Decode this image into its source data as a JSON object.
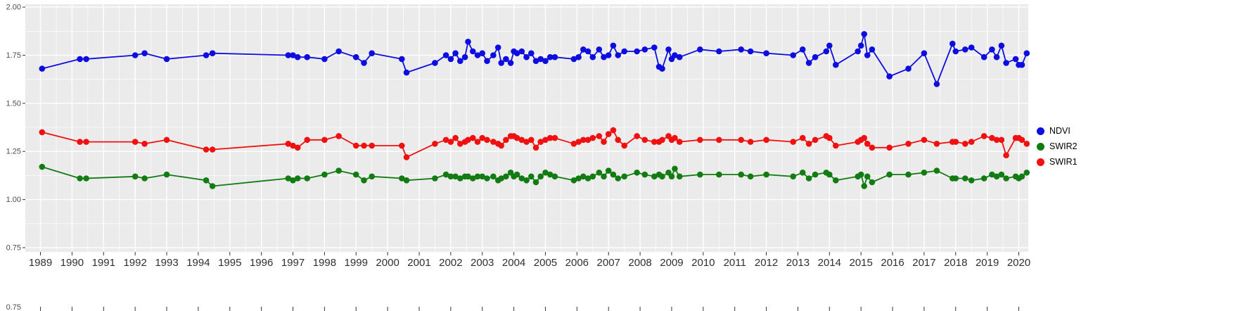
{
  "chart_data": {
    "type": "line",
    "title": "",
    "xlabel": "",
    "ylabel": "",
    "legend_position": "right",
    "grid": "major-and-minor",
    "xlim": [
      1988.52,
      2020.3
    ],
    "ylim": [
      0.728,
      2.015
    ],
    "x_ticks": [
      1989,
      1990,
      1991,
      1992,
      1993,
      1994,
      1995,
      1996,
      1997,
      1998,
      1999,
      2000,
      2001,
      2002,
      2003,
      2004,
      2005,
      2006,
      2007,
      2008,
      2009,
      2010,
      2011,
      2012,
      2013,
      2014,
      2015,
      2016,
      2017,
      2018,
      2019,
      2020
    ],
    "y_ticks": [
      0.75,
      1.0,
      1.25,
      1.5,
      1.75,
      2.0
    ],
    "y_tick_labels": [
      "0.75",
      "1.00",
      "1.25",
      "1.50",
      "1.75",
      "2.00"
    ],
    "bottom_axis_extra_label": "0.75",
    "colors": {
      "panel_bg": "#EBEBEB",
      "grid": "#FFFFFF",
      "tick": "#333333",
      "axis_text": "#4D4D4D",
      "x_label_text": "#303030"
    },
    "x": [
      1989.05,
      1990.25,
      1990.45,
      1992.0,
      1992.3,
      1993.0,
      1994.25,
      1994.45,
      1996.85,
      1997.0,
      1997.15,
      1997.45,
      1998.0,
      1998.45,
      1999.0,
      1999.25,
      1999.5,
      2000.45,
      2000.6,
      2001.5,
      2001.85,
      2002.0,
      2002.15,
      2002.3,
      2002.45,
      2002.55,
      2002.7,
      2002.85,
      2003.0,
      2003.15,
      2003.35,
      2003.5,
      2003.6,
      2003.75,
      2003.9,
      2004.0,
      2004.1,
      2004.25,
      2004.4,
      2004.55,
      2004.7,
      2004.85,
      2005.0,
      2005.15,
      2005.3,
      2005.9,
      2006.05,
      2006.2,
      2006.35,
      2006.5,
      2006.7,
      2006.85,
      2007.0,
      2007.15,
      2007.3,
      2007.5,
      2007.9,
      2008.15,
      2008.45,
      2008.6,
      2008.7,
      2008.9,
      2009.0,
      2009.1,
      2009.25,
      2009.9,
      2010.5,
      2011.2,
      2011.5,
      2012.0,
      2012.85,
      2013.15,
      2013.35,
      2013.55,
      2013.9,
      2014.0,
      2014.2,
      2014.9,
      2015.0,
      2015.1,
      2015.2,
      2015.35,
      2015.9,
      2016.5,
      2017.0,
      2017.4,
      2017.9,
      2018.0,
      2018.3,
      2018.5,
      2018.9,
      2019.15,
      2019.3,
      2019.45,
      2019.6,
      2019.9,
      2020.0,
      2020.1,
      2020.25
    ],
    "series": [
      {
        "name": "NDVI",
        "color": "#0D0DE0",
        "values": [
          1.68,
          1.73,
          1.73,
          1.75,
          1.76,
          1.73,
          1.75,
          1.76,
          1.75,
          1.75,
          1.74,
          1.74,
          1.73,
          1.77,
          1.74,
          1.71,
          1.76,
          1.73,
          1.66,
          1.71,
          1.75,
          1.73,
          1.76,
          1.72,
          1.74,
          1.82,
          1.77,
          1.75,
          1.76,
          1.72,
          1.75,
          1.79,
          1.71,
          1.73,
          1.71,
          1.77,
          1.76,
          1.77,
          1.74,
          1.76,
          1.72,
          1.73,
          1.72,
          1.74,
          1.74,
          1.73,
          1.74,
          1.78,
          1.77,
          1.74,
          1.78,
          1.74,
          1.75,
          1.8,
          1.75,
          1.77,
          1.77,
          1.78,
          1.79,
          1.69,
          1.68,
          1.78,
          1.73,
          1.75,
          1.74,
          1.78,
          1.77,
          1.78,
          1.77,
          1.76,
          1.75,
          1.78,
          1.71,
          1.74,
          1.77,
          1.8,
          1.7,
          1.77,
          1.8,
          1.86,
          1.75,
          1.78,
          1.64,
          1.68,
          1.76,
          1.6,
          1.81,
          1.77,
          1.78,
          1.79,
          1.74,
          1.78,
          1.74,
          1.8,
          1.71,
          1.73,
          1.7,
          1.7,
          1.76
        ]
      },
      {
        "name": "SWIR2",
        "color": "#127C12",
        "values": [
          1.17,
          1.11,
          1.11,
          1.12,
          1.11,
          1.13,
          1.1,
          1.07,
          1.11,
          1.1,
          1.11,
          1.11,
          1.13,
          1.15,
          1.13,
          1.1,
          1.12,
          1.11,
          1.1,
          1.11,
          1.13,
          1.12,
          1.12,
          1.11,
          1.12,
          1.12,
          1.11,
          1.12,
          1.12,
          1.11,
          1.12,
          1.1,
          1.11,
          1.12,
          1.14,
          1.12,
          1.13,
          1.11,
          1.1,
          1.12,
          1.09,
          1.12,
          1.14,
          1.13,
          1.12,
          1.1,
          1.11,
          1.12,
          1.11,
          1.12,
          1.14,
          1.12,
          1.15,
          1.13,
          1.11,
          1.12,
          1.14,
          1.13,
          1.12,
          1.13,
          1.12,
          1.14,
          1.12,
          1.16,
          1.12,
          1.13,
          1.13,
          1.13,
          1.12,
          1.13,
          1.12,
          1.14,
          1.11,
          1.13,
          1.14,
          1.13,
          1.1,
          1.12,
          1.13,
          1.07,
          1.12,
          1.09,
          1.13,
          1.13,
          1.14,
          1.15,
          1.11,
          1.11,
          1.11,
          1.1,
          1.11,
          1.13,
          1.12,
          1.13,
          1.11,
          1.12,
          1.11,
          1.12,
          1.14
        ]
      },
      {
        "name": "SWIR1",
        "color": "#F01010",
        "values": [
          1.35,
          1.3,
          1.3,
          1.3,
          1.29,
          1.31,
          1.26,
          1.26,
          1.29,
          1.28,
          1.27,
          1.31,
          1.31,
          1.33,
          1.28,
          1.28,
          1.28,
          1.28,
          1.22,
          1.29,
          1.31,
          1.3,
          1.32,
          1.29,
          1.3,
          1.31,
          1.32,
          1.3,
          1.32,
          1.31,
          1.3,
          1.29,
          1.28,
          1.31,
          1.33,
          1.33,
          1.32,
          1.31,
          1.3,
          1.31,
          1.27,
          1.3,
          1.31,
          1.32,
          1.32,
          1.29,
          1.3,
          1.31,
          1.31,
          1.32,
          1.33,
          1.3,
          1.34,
          1.36,
          1.31,
          1.28,
          1.33,
          1.31,
          1.3,
          1.3,
          1.31,
          1.33,
          1.31,
          1.32,
          1.3,
          1.31,
          1.31,
          1.31,
          1.3,
          1.31,
          1.3,
          1.32,
          1.29,
          1.31,
          1.33,
          1.32,
          1.28,
          1.3,
          1.31,
          1.32,
          1.29,
          1.27,
          1.27,
          1.29,
          1.31,
          1.29,
          1.3,
          1.3,
          1.29,
          1.3,
          1.33,
          1.32,
          1.31,
          1.31,
          1.23,
          1.32,
          1.32,
          1.31,
          1.29
        ]
      }
    ]
  },
  "legend": {
    "items": [
      {
        "label": "NDVI",
        "color": "#0D0DE0"
      },
      {
        "label": "SWIR2",
        "color": "#127C12"
      },
      {
        "label": "SWIR1",
        "color": "#F01010"
      }
    ]
  }
}
